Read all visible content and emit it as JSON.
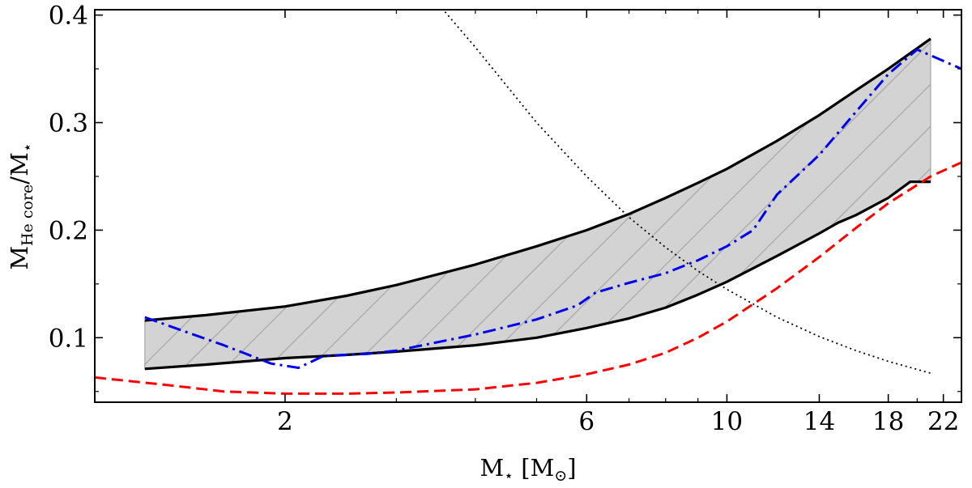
{
  "chart_data": {
    "type": "line",
    "title": "",
    "xlabel": "M⋆ [M⊙]",
    "xlabel_parts": {
      "main": "M",
      "star": "⋆",
      "unit_open": " [M",
      "unit_sub": "⊙",
      "unit_close": "]"
    },
    "ylabel": "MHe core/M⋆",
    "ylabel_parts": {
      "main": "M",
      "sub": "He core",
      "rest": "/M",
      "star": "⋆"
    },
    "xscale": "log",
    "xlim": [
      1.0,
      23.5
    ],
    "ylim": [
      0.04,
      0.405
    ],
    "x_ticks": [
      2,
      6,
      10,
      14,
      18,
      22
    ],
    "x_tick_labels": [
      "2",
      "6",
      "10",
      "14",
      "18",
      "22"
    ],
    "y_ticks": [
      0.1,
      0.2,
      0.3,
      0.4
    ],
    "y_tick_labels": [
      "0.1",
      "0.2",
      "0.3",
      "0.4"
    ],
    "grid": false,
    "series": [
      {
        "name": "upper boundary",
        "style": "solid",
        "color": "#000000",
        "x": [
          1.2,
          1.5,
          2.0,
          2.5,
          3.0,
          4.0,
          5.0,
          6.0,
          7.0,
          8.0,
          9.0,
          10.0,
          12.0,
          14.0,
          16.0,
          18.0,
          21.0
        ],
        "y": [
          0.116,
          0.121,
          0.129,
          0.139,
          0.149,
          0.168,
          0.185,
          0.2,
          0.215,
          0.23,
          0.244,
          0.257,
          0.283,
          0.307,
          0.33,
          0.35,
          0.378
        ]
      },
      {
        "name": "lower boundary",
        "style": "solid",
        "color": "#000000",
        "x": [
          1.2,
          1.5,
          2.0,
          2.5,
          3.0,
          4.0,
          5.0,
          6.0,
          7.0,
          8.0,
          9.0,
          10.0,
          12.0,
          14.0,
          15.0,
          16.0,
          18.0,
          19.5,
          21.0
        ],
        "y": [
          0.071,
          0.075,
          0.081,
          0.084,
          0.087,
          0.093,
          0.1,
          0.109,
          0.118,
          0.128,
          0.14,
          0.152,
          0.176,
          0.197,
          0.207,
          0.214,
          0.23,
          0.245,
          0.245
        ]
      },
      {
        "name": "blue dash-dot",
        "style": "dashdot",
        "color": "#0000ee",
        "x": [
          1.2,
          1.4,
          1.6,
          1.9,
          2.1,
          2.3,
          2.7,
          3.0,
          4.0,
          5.0,
          5.8,
          6.2,
          7.0,
          8.0,
          9.0,
          10.0,
          11.0,
          12.0,
          14.0,
          16.0,
          18.0,
          20.0,
          23.5
        ],
        "y": [
          0.119,
          0.105,
          0.093,
          0.076,
          0.072,
          0.083,
          0.085,
          0.088,
          0.103,
          0.117,
          0.13,
          0.142,
          0.151,
          0.16,
          0.172,
          0.185,
          0.2,
          0.233,
          0.27,
          0.31,
          0.345,
          0.368,
          0.35
        ]
      },
      {
        "name": "red dashed",
        "style": "dashed",
        "color": "#ff0000",
        "x": [
          1.0,
          1.3,
          1.6,
          2.0,
          2.5,
          3.0,
          4.0,
          5.0,
          6.0,
          7.0,
          8.0,
          9.0,
          10.0,
          12.0,
          14.0,
          16.0,
          18.0,
          21.0,
          23.5
        ],
        "y": [
          0.063,
          0.056,
          0.05,
          0.048,
          0.048,
          0.049,
          0.052,
          0.058,
          0.066,
          0.075,
          0.086,
          0.1,
          0.115,
          0.146,
          0.175,
          0.202,
          0.225,
          0.25,
          0.263
        ]
      },
      {
        "name": "black dotted",
        "style": "dotted",
        "color": "#000000",
        "x": [
          3.5,
          4.0,
          5.0,
          6.0,
          7.0,
          8.0,
          9.0,
          10.0,
          12.0,
          14.0,
          16.0,
          18.0,
          21.0
        ],
        "y": [
          0.41,
          0.37,
          0.3,
          0.25,
          0.212,
          0.184,
          0.162,
          0.145,
          0.119,
          0.101,
          0.088,
          0.078,
          0.067
        ]
      }
    ],
    "shaded_region": {
      "between": [
        "upper boundary",
        "lower boundary"
      ],
      "x_range": [
        1.2,
        21.0
      ],
      "fill": "#d3d3d3",
      "hatch": "diagonal"
    }
  }
}
